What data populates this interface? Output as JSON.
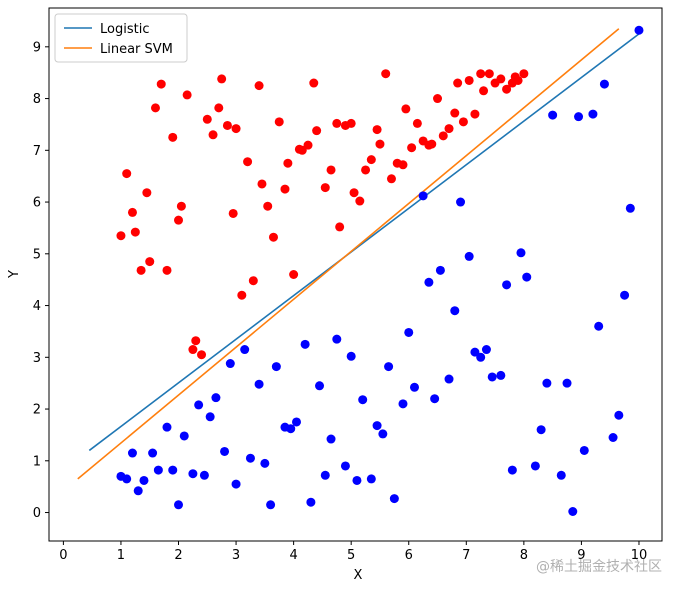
{
  "chart_data": {
    "type": "scatter",
    "title": "",
    "xlabel": "X",
    "ylabel": "Y",
    "xlim": [
      -0.25,
      10.4
    ],
    "ylim": [
      -0.55,
      9.75
    ],
    "xticks": [
      "0",
      "1",
      "2",
      "3",
      "4",
      "5",
      "6",
      "7",
      "8",
      "9",
      "10"
    ],
    "yticks": [
      "0",
      "1",
      "2",
      "3",
      "4",
      "5",
      "6",
      "7",
      "8",
      "9"
    ],
    "grid": false,
    "legend_position": "top-left",
    "lines": [
      {
        "name": "Logistic",
        "color": "#1f77b4",
        "x": [
          0.45,
          10.0
        ],
        "y": [
          1.2,
          9.25
        ]
      },
      {
        "name": "Linear SVM",
        "color": "#ff7f0e",
        "x": [
          0.25,
          9.65
        ],
        "y": [
          0.65,
          9.35
        ]
      }
    ],
    "scatter": [
      {
        "color": "#ff0000",
        "points": [
          [
            1.0,
            5.35
          ],
          [
            1.1,
            6.55
          ],
          [
            1.2,
            5.8
          ],
          [
            1.25,
            5.42
          ],
          [
            1.35,
            4.68
          ],
          [
            1.45,
            6.18
          ],
          [
            1.5,
            4.85
          ],
          [
            1.6,
            7.82
          ],
          [
            1.7,
            8.28
          ],
          [
            1.8,
            4.68
          ],
          [
            1.9,
            7.25
          ],
          [
            2.0,
            5.65
          ],
          [
            2.05,
            5.92
          ],
          [
            2.15,
            8.07
          ],
          [
            2.25,
            3.15
          ],
          [
            2.3,
            3.32
          ],
          [
            2.4,
            3.05
          ],
          [
            2.5,
            7.6
          ],
          [
            2.6,
            7.3
          ],
          [
            2.7,
            7.82
          ],
          [
            2.75,
            8.38
          ],
          [
            2.85,
            7.48
          ],
          [
            2.95,
            5.78
          ],
          [
            3.0,
            7.42
          ],
          [
            3.1,
            4.2
          ],
          [
            3.2,
            6.78
          ],
          [
            3.3,
            4.48
          ],
          [
            3.4,
            8.25
          ],
          [
            3.45,
            6.35
          ],
          [
            3.55,
            5.92
          ],
          [
            3.65,
            5.32
          ],
          [
            3.75,
            7.55
          ],
          [
            3.85,
            6.25
          ],
          [
            3.9,
            6.75
          ],
          [
            4.0,
            4.6
          ],
          [
            4.1,
            7.02
          ],
          [
            4.15,
            7.0
          ],
          [
            4.25,
            7.1
          ],
          [
            4.35,
            8.3
          ],
          [
            4.4,
            7.38
          ],
          [
            4.55,
            6.28
          ],
          [
            4.65,
            6.62
          ],
          [
            4.75,
            7.52
          ],
          [
            4.8,
            5.52
          ],
          [
            4.9,
            7.48
          ],
          [
            5.0,
            7.52
          ],
          [
            5.05,
            6.18
          ],
          [
            5.15,
            6.02
          ],
          [
            5.25,
            6.62
          ],
          [
            5.35,
            6.82
          ],
          [
            5.45,
            7.4
          ],
          [
            5.5,
            7.12
          ],
          [
            5.6,
            8.48
          ],
          [
            5.7,
            6.45
          ],
          [
            5.8,
            6.75
          ],
          [
            5.9,
            6.72
          ],
          [
            5.95,
            7.8
          ],
          [
            6.05,
            7.05
          ],
          [
            6.15,
            7.52
          ],
          [
            6.25,
            7.18
          ],
          [
            6.35,
            7.1
          ],
          [
            6.4,
            7.12
          ],
          [
            6.5,
            8.0
          ],
          [
            6.6,
            7.28
          ],
          [
            6.7,
            7.42
          ],
          [
            6.8,
            7.72
          ],
          [
            6.85,
            8.3
          ],
          [
            6.95,
            7.55
          ],
          [
            7.05,
            8.35
          ],
          [
            7.15,
            7.7
          ],
          [
            7.25,
            8.48
          ],
          [
            7.3,
            8.15
          ],
          [
            7.4,
            8.48
          ],
          [
            7.5,
            8.3
          ],
          [
            7.6,
            8.38
          ],
          [
            7.7,
            8.18
          ],
          [
            7.8,
            8.3
          ],
          [
            7.9,
            8.35
          ],
          [
            8.0,
            8.48
          ],
          [
            7.85,
            8.42
          ]
        ]
      },
      {
        "color": "#0000ff",
        "points": [
          [
            1.0,
            0.7
          ],
          [
            1.1,
            0.65
          ],
          [
            1.2,
            1.15
          ],
          [
            1.3,
            0.42
          ],
          [
            1.4,
            0.62
          ],
          [
            1.55,
            1.15
          ],
          [
            1.65,
            0.82
          ],
          [
            1.8,
            1.65
          ],
          [
            1.9,
            0.82
          ],
          [
            2.0,
            0.15
          ],
          [
            2.1,
            1.48
          ],
          [
            2.25,
            0.75
          ],
          [
            2.35,
            2.08
          ],
          [
            2.45,
            0.72
          ],
          [
            2.55,
            1.85
          ],
          [
            2.65,
            2.22
          ],
          [
            2.8,
            1.18
          ],
          [
            2.9,
            2.88
          ],
          [
            3.0,
            0.55
          ],
          [
            3.15,
            3.15
          ],
          [
            3.25,
            1.05
          ],
          [
            3.4,
            2.48
          ],
          [
            3.5,
            0.95
          ],
          [
            3.6,
            0.15
          ],
          [
            3.7,
            2.82
          ],
          [
            3.85,
            1.65
          ],
          [
            3.95,
            1.62
          ],
          [
            4.05,
            1.75
          ],
          [
            4.2,
            3.25
          ],
          [
            4.3,
            0.2
          ],
          [
            4.45,
            2.45
          ],
          [
            4.55,
            0.72
          ],
          [
            4.65,
            1.42
          ],
          [
            4.75,
            3.35
          ],
          [
            4.9,
            0.9
          ],
          [
            5.0,
            3.02
          ],
          [
            5.1,
            0.62
          ],
          [
            5.2,
            2.18
          ],
          [
            5.35,
            0.65
          ],
          [
            5.45,
            1.68
          ],
          [
            5.55,
            1.52
          ],
          [
            5.65,
            2.82
          ],
          [
            5.75,
            0.27
          ],
          [
            5.9,
            2.1
          ],
          [
            6.0,
            3.48
          ],
          [
            6.1,
            2.42
          ],
          [
            6.25,
            6.12
          ],
          [
            6.35,
            4.45
          ],
          [
            6.45,
            2.2
          ],
          [
            6.55,
            4.68
          ],
          [
            6.7,
            2.58
          ],
          [
            6.8,
            3.9
          ],
          [
            6.9,
            6.0
          ],
          [
            7.05,
            4.95
          ],
          [
            7.15,
            3.1
          ],
          [
            7.25,
            3.0
          ],
          [
            7.35,
            3.15
          ],
          [
            7.45,
            2.62
          ],
          [
            7.6,
            2.65
          ],
          [
            7.7,
            4.4
          ],
          [
            7.8,
            0.82
          ],
          [
            7.95,
            5.02
          ],
          [
            8.05,
            4.55
          ],
          [
            8.2,
            0.9
          ],
          [
            8.3,
            1.6
          ],
          [
            8.4,
            2.5
          ],
          [
            8.5,
            7.68
          ],
          [
            8.65,
            0.72
          ],
          [
            8.75,
            2.5
          ],
          [
            8.85,
            0.02
          ],
          [
            8.95,
            7.65
          ],
          [
            9.05,
            1.2
          ],
          [
            9.2,
            7.7
          ],
          [
            9.3,
            3.6
          ],
          [
            9.4,
            8.28
          ],
          [
            9.55,
            1.45
          ],
          [
            9.65,
            1.88
          ],
          [
            9.75,
            4.2
          ],
          [
            9.85,
            5.88
          ],
          [
            10.0,
            9.32
          ]
        ]
      }
    ],
    "watermark": "@稀土掘金技术社区"
  }
}
